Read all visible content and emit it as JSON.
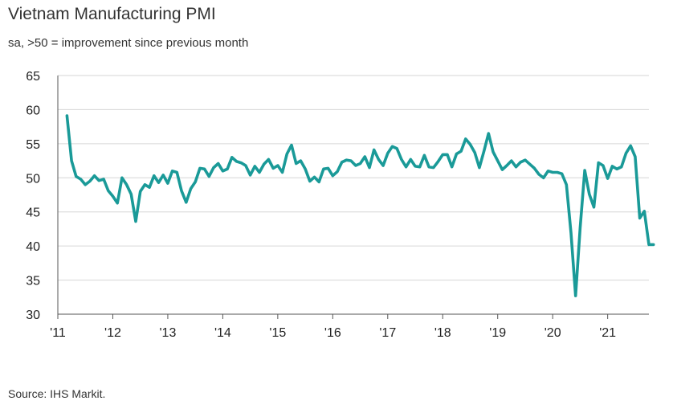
{
  "chart_data": {
    "type": "line",
    "title": "Vietnam Manufacturing PMI",
    "subtitle": "sa, >50 = improvement since previous month",
    "source": "Source: IHS Markit.",
    "xlabel": "",
    "ylabel": "",
    "ylim": [
      30,
      65
    ],
    "yticks": [
      30,
      35,
      40,
      45,
      50,
      55,
      60,
      65
    ],
    "xlim": [
      2011.0,
      2021.75
    ],
    "xticks": [
      {
        "value": 2011,
        "label": "'11"
      },
      {
        "value": 2012,
        "label": "'12"
      },
      {
        "value": 2013,
        "label": "'13"
      },
      {
        "value": 2014,
        "label": "'14"
      },
      {
        "value": 2015,
        "label": "'15"
      },
      {
        "value": 2016,
        "label": "'16"
      },
      {
        "value": 2017,
        "label": "'17"
      },
      {
        "value": 2018,
        "label": "'18"
      },
      {
        "value": 2019,
        "label": "'19"
      },
      {
        "value": 2020,
        "label": "'20"
      },
      {
        "value": 2021,
        "label": "'21"
      }
    ],
    "grid": true,
    "series": [
      {
        "name": "Vietnam Manufacturing PMI",
        "color": "#1a9a98",
        "start_year": 2011,
        "start_month": 3,
        "values": [
          59.1,
          52.5,
          50.2,
          49.8,
          49.0,
          49.5,
          50.3,
          49.6,
          49.8,
          48.1,
          47.3,
          46.3,
          50.0,
          49.0,
          47.6,
          43.6,
          48.0,
          49.0,
          48.6,
          50.3,
          49.3,
          50.4,
          49.2,
          51.0,
          50.8,
          48.1,
          46.4,
          48.4,
          49.4,
          51.4,
          51.3,
          50.2,
          51.5,
          52.1,
          51.0,
          51.3,
          53.0,
          52.4,
          52.2,
          51.8,
          50.4,
          51.7,
          50.8,
          52.0,
          52.7,
          51.4,
          51.8,
          50.8,
          53.5,
          54.8,
          52.1,
          52.5,
          51.3,
          49.5,
          50.1,
          49.4,
          51.3,
          51.4,
          50.3,
          50.9,
          52.3,
          52.6,
          52.5,
          51.8,
          52.1,
          53.1,
          51.5,
          54.1,
          52.7,
          51.8,
          53.6,
          54.6,
          54.3,
          52.7,
          51.6,
          52.7,
          51.7,
          51.6,
          53.3,
          51.6,
          51.5,
          52.4,
          53.4,
          53.4,
          51.6,
          53.5,
          53.9,
          55.7,
          54.9,
          53.7,
          51.5,
          53.9,
          56.5,
          53.8,
          52.5,
          51.2,
          51.8,
          52.5,
          51.6,
          52.3,
          52.6,
          52.0,
          51.4,
          50.5,
          50.0,
          51.0,
          50.8,
          50.8,
          50.6,
          49.0,
          41.9,
          32.7,
          42.7,
          51.1,
          47.6,
          45.7,
          52.2,
          51.8,
          49.9,
          51.7,
          51.3,
          51.6,
          53.6,
          54.7,
          53.1,
          44.1,
          45.1,
          40.2,
          40.2
        ]
      }
    ]
  }
}
